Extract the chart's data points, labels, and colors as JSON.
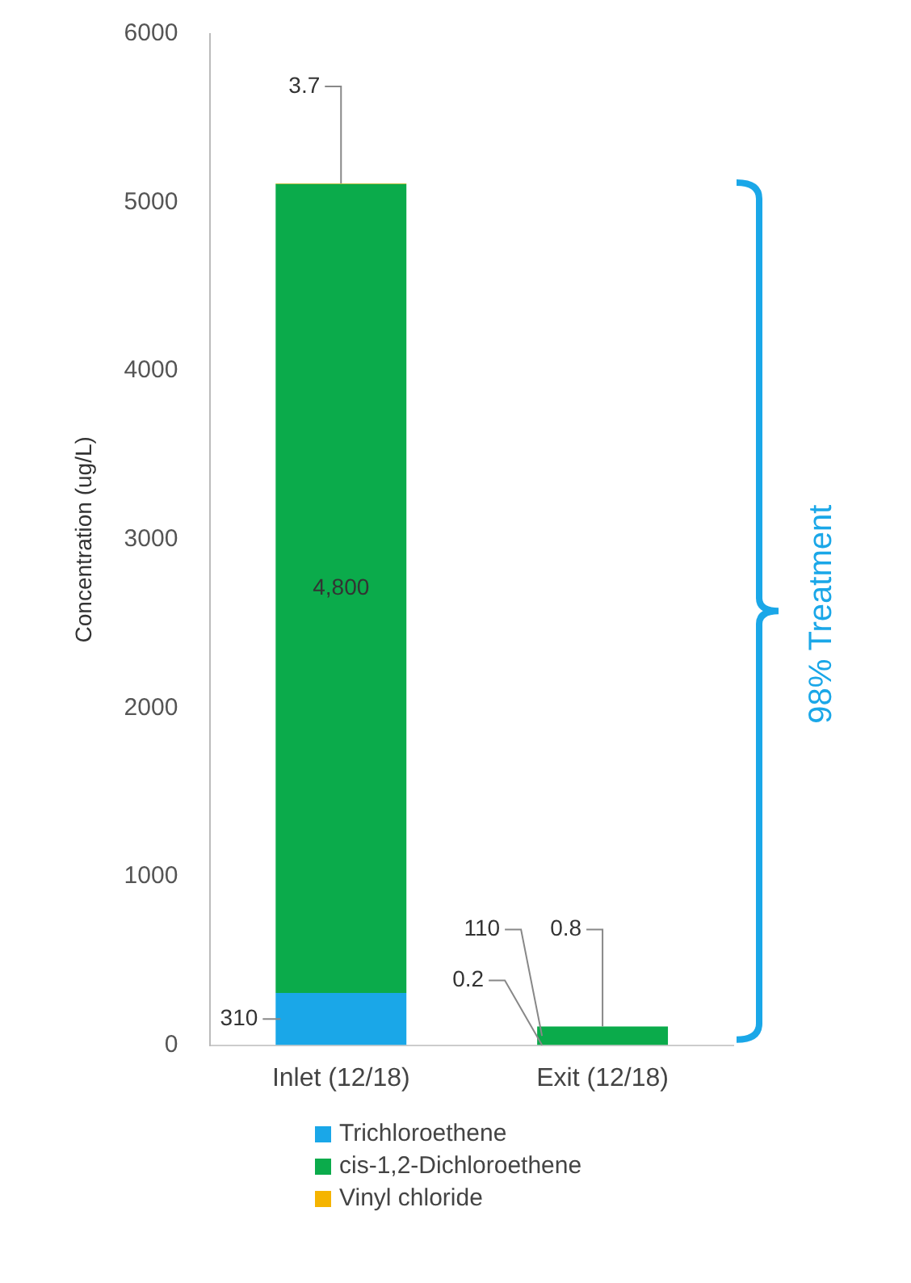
{
  "chart_data": {
    "type": "bar",
    "stacked": true,
    "categories": [
      "Inlet (12/18)",
      "Exit (12/18)"
    ],
    "ylabel": "Concentration (ug/L)",
    "ylim": [
      0,
      6000
    ],
    "yticks": [
      0,
      1000,
      2000,
      3000,
      4000,
      5000,
      6000
    ],
    "grid": false,
    "legend": "bottom",
    "series": [
      {
        "name": "Trichloroethene",
        "color": "#1aa7e8",
        "values": [
          310,
          0.2
        ],
        "value_labels": [
          "310",
          "0.2"
        ]
      },
      {
        "name": "cis-1,2-Dichloroethene",
        "color": "#0bab4b",
        "values": [
          4800,
          110
        ],
        "value_labels": [
          "4,800",
          "110"
        ]
      },
      {
        "name": "Vinyl chloride",
        "color": "#f5b400",
        "values": [
          3.7,
          0.8
        ],
        "value_labels": [
          "3.7",
          "0.8"
        ]
      }
    ],
    "annotations": [
      "98% Treatment"
    ]
  }
}
